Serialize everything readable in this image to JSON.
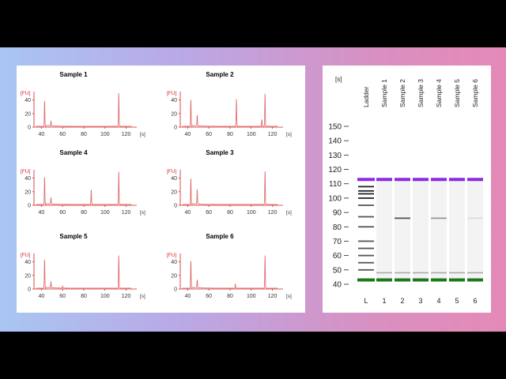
{
  "colors": {
    "trace": "#e07070",
    "axis": "#d22020",
    "upper_marker": "#8a2be2",
    "lower_marker": "#1a7a1a"
  },
  "electropherograms": {
    "y_unit": "[FU]",
    "x_unit": "[s]",
    "y_ticks": [
      "0",
      "20",
      "40"
    ],
    "x_ticks": [
      "40",
      "60",
      "80",
      "100",
      "120"
    ],
    "panels": [
      {
        "title": "Sample 1"
      },
      {
        "title": "Sample 2"
      },
      {
        "title": "Sample 4"
      },
      {
        "title": "Sample 3"
      },
      {
        "title": "Sample 5"
      },
      {
        "title": "Sample 6"
      }
    ]
  },
  "gel": {
    "y_unit": "[s]",
    "y_ticks": [
      "150",
      "140",
      "130",
      "120",
      "110",
      "100",
      "90",
      "80",
      "70",
      "60",
      "50",
      "40"
    ],
    "lane_headers": [
      "Ladder",
      "Sample 1",
      "Sample 2",
      "Sample 3",
      "Sample 4",
      "Sample 5",
      "Sample 6"
    ],
    "lane_labels": [
      "L",
      "1",
      "2",
      "3",
      "4",
      "5",
      "6"
    ]
  },
  "chart_data": [
    {
      "type": "line",
      "title": "Sample 1",
      "xlabel": "[s]",
      "ylabel": "[FU]",
      "xlim": [
        33,
        130
      ],
      "ylim": [
        0,
        50
      ],
      "peaks": [
        {
          "x": 43,
          "y": 38
        },
        {
          "x": 49,
          "y": 7
        },
        {
          "x": 113,
          "y": 49
        }
      ]
    },
    {
      "type": "line",
      "title": "Sample 2",
      "xlabel": "[s]",
      "ylabel": "[FU]",
      "xlim": [
        33,
        130
      ],
      "ylim": [
        0,
        50
      ],
      "peaks": [
        {
          "x": 43,
          "y": 40
        },
        {
          "x": 49,
          "y": 16
        },
        {
          "x": 86,
          "y": 40
        },
        {
          "x": 110,
          "y": 10
        },
        {
          "x": 113,
          "y": 48
        }
      ]
    },
    {
      "type": "line",
      "title": "Sample 4",
      "xlabel": "[s]",
      "ylabel": "[FU]",
      "xlim": [
        33,
        130
      ],
      "ylim": [
        0,
        50
      ],
      "peaks": [
        {
          "x": 43,
          "y": 41
        },
        {
          "x": 49,
          "y": 10
        },
        {
          "x": 87,
          "y": 22
        },
        {
          "x": 113,
          "y": 48
        }
      ]
    },
    {
      "type": "line",
      "title": "Sample 3",
      "xlabel": "[s]",
      "ylabel": "[FU]",
      "xlim": [
        33,
        130
      ],
      "ylim": [
        0,
        50
      ],
      "peaks": [
        {
          "x": 43,
          "y": 39
        },
        {
          "x": 49,
          "y": 22
        },
        {
          "x": 113,
          "y": 49
        }
      ]
    },
    {
      "type": "line",
      "title": "Sample 5",
      "xlabel": "[s]",
      "ylabel": "[FU]",
      "xlim": [
        33,
        130
      ],
      "ylim": [
        0,
        50
      ],
      "peaks": [
        {
          "x": 43,
          "y": 43
        },
        {
          "x": 49,
          "y": 9
        },
        {
          "x": 60,
          "y": 3
        },
        {
          "x": 113,
          "y": 48
        }
      ]
    },
    {
      "type": "line",
      "title": "Sample 6",
      "xlabel": "[s]",
      "ylabel": "[FU]",
      "xlim": [
        33,
        130
      ],
      "ylim": [
        0,
        50
      ],
      "peaks": [
        {
          "x": 43,
          "y": 41
        },
        {
          "x": 49,
          "y": 12
        },
        {
          "x": 85,
          "y": 6
        },
        {
          "x": 113,
          "y": 48
        }
      ]
    },
    {
      "type": "heatmap",
      "title": "",
      "ylabel": "[s]",
      "ylim": [
        36,
        155
      ],
      "lanes": [
        "L",
        "1",
        "2",
        "3",
        "4",
        "5",
        "6"
      ],
      "markers": {
        "upper": 113,
        "lower": 43
      },
      "bands": [
        {
          "lane": "L",
          "positions": [
            50,
            55,
            60,
            65,
            70,
            80,
            87,
            95,
            100,
            103,
            105,
            108
          ]
        },
        {
          "lane": "1",
          "positions": [
            48
          ]
        },
        {
          "lane": "2",
          "positions": [
            48,
            86
          ]
        },
        {
          "lane": "3",
          "positions": [
            48
          ]
        },
        {
          "lane": "4",
          "positions": [
            48,
            86
          ]
        },
        {
          "lane": "5",
          "positions": [
            48
          ]
        },
        {
          "lane": "6",
          "positions": [
            48,
            86
          ]
        }
      ]
    }
  ]
}
